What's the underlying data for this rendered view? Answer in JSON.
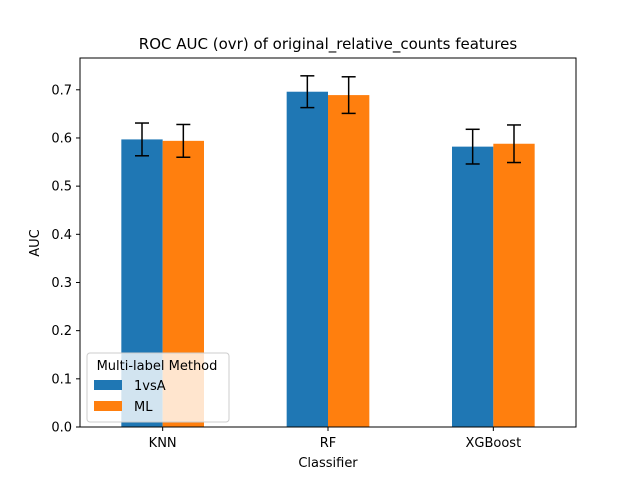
{
  "chart_data": {
    "type": "bar",
    "title": "ROC AUC (ovr) of original_relative_counts features",
    "xlabel": "Classifier",
    "ylabel": "AUC",
    "categories": [
      "KNN",
      "RF",
      "XGBoost"
    ],
    "ylim": [
      0,
      0.766
    ],
    "yticks": [
      0.0,
      0.1,
      0.2,
      0.3,
      0.4,
      0.5,
      0.6,
      0.7
    ],
    "ytick_labels": [
      "0.0",
      "0.1",
      "0.2",
      "0.3",
      "0.4",
      "0.5",
      "0.6",
      "0.7"
    ],
    "grid": false,
    "legend": {
      "title": "Multi-label Method",
      "placement": "lower-left"
    },
    "series": [
      {
        "name": "1vsA",
        "color": "#1f77b4",
        "values": [
          0.597,
          0.696,
          0.582
        ],
        "error": [
          0.034,
          0.033,
          0.036
        ]
      },
      {
        "name": "ML",
        "color": "#ff7f0e",
        "values": [
          0.594,
          0.689,
          0.588
        ],
        "error": [
          0.034,
          0.038,
          0.039
        ]
      }
    ]
  }
}
